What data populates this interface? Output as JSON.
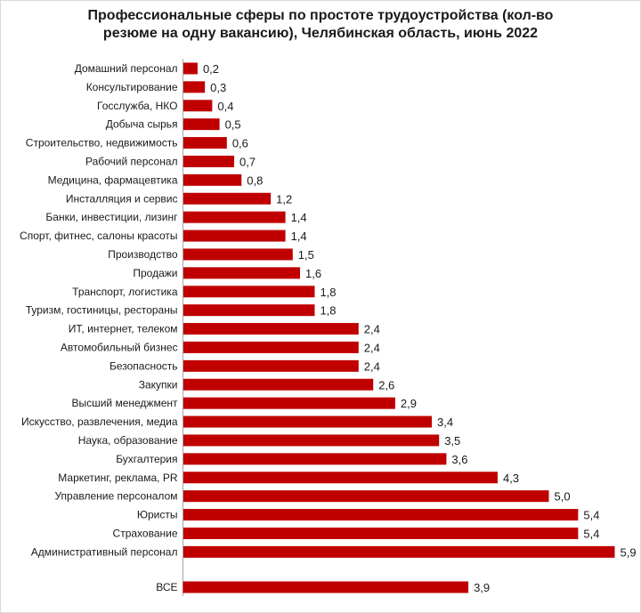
{
  "chart_data": {
    "type": "bar",
    "orientation": "horizontal",
    "title_line1": "Профессиональные сферы по простоте трудоустройства  (кол-во",
    "title_line2": "резюме на одну вакансию), Челябинская область, июнь 2022",
    "categories": [
      "Домашний персонал",
      "Консультирование",
      "Госслужба, НКО",
      "Добыча сырья",
      "Строительство, недвижимость",
      "Рабочий персонал",
      "Медицина, фармацевтика",
      "Инсталляция и сервис",
      "Банки, инвестиции, лизинг",
      "Спорт, фитнес, салоны красоты",
      "Производство",
      "Продажи",
      "Транспорт, логистика",
      "Туризм, гостиницы, рестораны",
      "ИТ, интернет, телеком",
      "Автомобильный бизнес",
      "Безопасность",
      "Закупки",
      "Высший менеджмент",
      "Искусство, развлечения, медиа",
      "Наука, образование",
      "Бухгалтерия",
      "Маркетинг, реклама, PR",
      "Управление персоналом",
      "Юристы",
      "Страхование",
      "Административный персонал"
    ],
    "values": [
      0.2,
      0.3,
      0.4,
      0.5,
      0.6,
      0.7,
      0.8,
      1.2,
      1.4,
      1.4,
      1.5,
      1.6,
      1.8,
      1.8,
      2.4,
      2.4,
      2.4,
      2.6,
      2.9,
      3.4,
      3.5,
      3.6,
      4.3,
      5.0,
      5.4,
      5.4,
      5.9
    ],
    "value_labels": [
      "0,2",
      "0,3",
      "0,4",
      "0,5",
      "0,6",
      "0,7",
      "0,8",
      "1,2",
      "1,4",
      "1,4",
      "1,5",
      "1,6",
      "1,8",
      "1,8",
      "2,4",
      "2,4",
      "2,4",
      "2,6",
      "2,9",
      "3,4",
      "3,5",
      "3,6",
      "4,3",
      "5,0",
      "5,4",
      "5,4",
      "5,9"
    ],
    "total": {
      "category": "ВСЕ",
      "value": 3.9,
      "label": "3,9"
    },
    "xlim": [
      0,
      5.9
    ],
    "bar_color": "#c00000",
    "grid": false,
    "legend": "none"
  }
}
